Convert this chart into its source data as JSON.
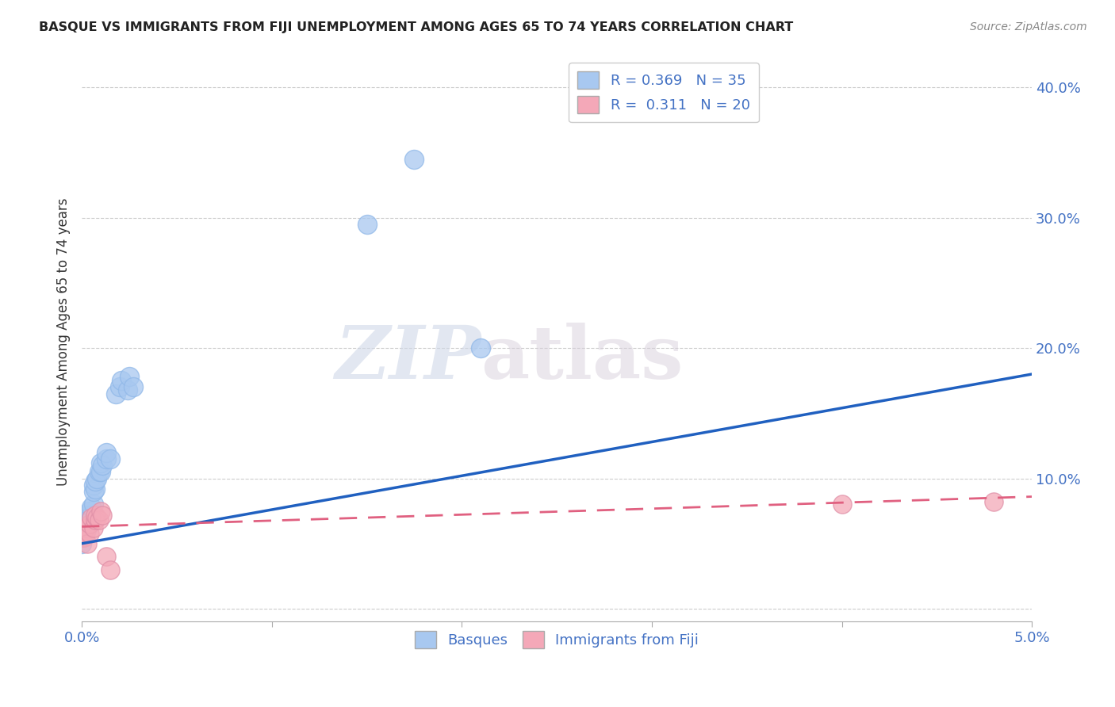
{
  "title": "BASQUE VS IMMIGRANTS FROM FIJI UNEMPLOYMENT AMONG AGES 65 TO 74 YEARS CORRELATION CHART",
  "source": "Source: ZipAtlas.com",
  "xlabel": "",
  "ylabel": "Unemployment Among Ages 65 to 74 years",
  "xlim": [
    0.0,
    0.05
  ],
  "ylim": [
    -0.01,
    0.42
  ],
  "xticks": [
    0.0,
    0.01,
    0.02,
    0.03,
    0.04,
    0.05
  ],
  "xtick_labels": [
    "0.0%",
    "",
    "",
    "",
    "",
    "5.0%"
  ],
  "yticks": [
    0.0,
    0.1,
    0.2,
    0.3,
    0.4
  ],
  "ytick_labels": [
    "",
    "10.0%",
    "20.0%",
    "30.0%",
    "40.0%"
  ],
  "basque_R": 0.369,
  "basque_N": 35,
  "fiji_R": 0.311,
  "fiji_N": 20,
  "basque_color": "#a8c8f0",
  "fiji_color": "#f4a8b8",
  "basque_line_color": "#2060c0",
  "fiji_line_color": "#e06080",
  "watermark_zip": "ZIP",
  "watermark_atlas": "atlas",
  "basque_x": [
    0.0,
    0.0,
    0.0001,
    0.0001,
    0.0002,
    0.0002,
    0.0003,
    0.0003,
    0.0003,
    0.0004,
    0.0004,
    0.0005,
    0.0005,
    0.0006,
    0.0006,
    0.0006,
    0.0007,
    0.0007,
    0.0008,
    0.0009,
    0.001,
    0.001,
    0.0011,
    0.0013,
    0.0013,
    0.0015,
    0.0018,
    0.002,
    0.0021,
    0.0024,
    0.0025,
    0.0027,
    0.015,
    0.0175,
    0.021
  ],
  "basque_y": [
    0.05,
    0.055,
    0.058,
    0.06,
    0.06,
    0.065,
    0.062,
    0.068,
    0.072,
    0.07,
    0.075,
    0.072,
    0.078,
    0.08,
    0.09,
    0.095,
    0.092,
    0.098,
    0.1,
    0.105,
    0.105,
    0.112,
    0.11,
    0.115,
    0.12,
    0.115,
    0.165,
    0.17,
    0.175,
    0.168,
    0.178,
    0.17,
    0.295,
    0.345,
    0.2
  ],
  "fiji_x": [
    0.0,
    0.0001,
    0.0001,
    0.0002,
    0.0002,
    0.0003,
    0.0004,
    0.0004,
    0.0005,
    0.0006,
    0.0007,
    0.0007,
    0.0008,
    0.0009,
    0.001,
    0.0011,
    0.0013,
    0.0015,
    0.04,
    0.048
  ],
  "fiji_y": [
    0.055,
    0.055,
    0.06,
    0.058,
    0.062,
    0.05,
    0.058,
    0.065,
    0.07,
    0.062,
    0.068,
    0.072,
    0.07,
    0.068,
    0.075,
    0.072,
    0.04,
    0.03,
    0.08,
    0.082
  ]
}
